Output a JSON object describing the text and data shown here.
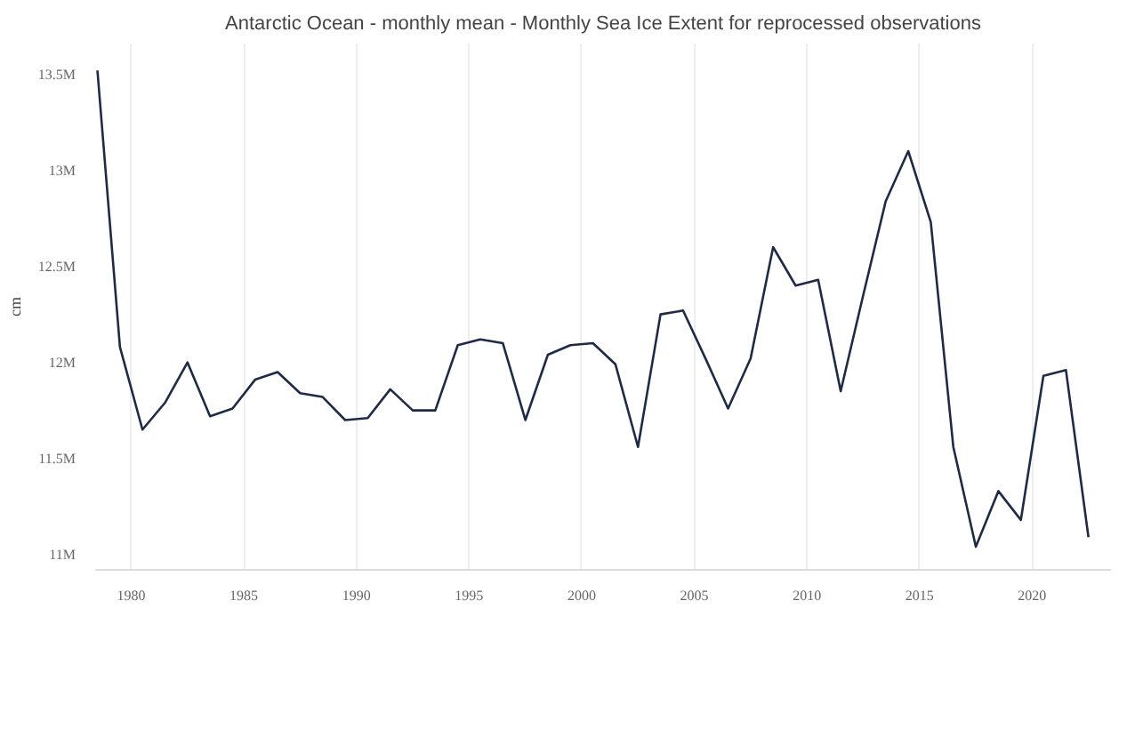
{
  "chart_data": {
    "type": "line",
    "title": "Antarctic Ocean - monthly mean - Monthly Sea Ice Extent for reprocessed observations",
    "ylabel": "cm",
    "x": [
      1978.5,
      1979.5,
      1980.5,
      1981.5,
      1982.5,
      1983.5,
      1984.5,
      1985.5,
      1986.5,
      1987.5,
      1988.5,
      1989.5,
      1990.5,
      1991.5,
      1992.5,
      1993.5,
      1994.5,
      1995.5,
      1996.5,
      1997.5,
      1998.5,
      1999.5,
      2000.5,
      2001.5,
      2002.5,
      2003.5,
      2004.5,
      2005.5,
      2006.5,
      2007.5,
      2008.5,
      2009.5,
      2010.5,
      2011.5,
      2012.5,
      2013.5,
      2014.5,
      2015.5,
      2016.5,
      2017.5,
      2018.5,
      2019.5,
      2020.5,
      2021.5,
      2022.5
    ],
    "series": [
      {
        "color": "#1f2a44",
        "values": [
          13520000,
          12080000,
          11650000,
          11790000,
          12000000,
          11720000,
          11760000,
          11910000,
          11950000,
          11840000,
          11820000,
          11700000,
          11710000,
          11860000,
          11750000,
          11750000,
          12090000,
          12120000,
          12100000,
          11700000,
          12040000,
          12090000,
          12100000,
          11990000,
          11560000,
          12250000,
          12270000,
          12020000,
          11760000,
          12020000,
          12600000,
          12400000,
          12430000,
          11850000,
          12350000,
          12840000,
          13100000,
          12730000,
          11560000,
          11040000,
          11330000,
          11180000,
          11930000,
          11960000,
          11090000
        ]
      }
    ],
    "xlim": [
      1978.4,
      2023.5
    ],
    "xticks": [
      1980,
      1985,
      1990,
      1995,
      2000,
      2005,
      2010,
      2015,
      2020
    ],
    "ylim": [
      10920000,
      13660000
    ],
    "yticks": [
      {
        "value": 11000000,
        "label": "11M"
      },
      {
        "value": 11500000,
        "label": "11.5M"
      },
      {
        "value": 12000000,
        "label": "12M"
      },
      {
        "value": 12500000,
        "label": "12.5M"
      },
      {
        "value": 13000000,
        "label": "13M"
      },
      {
        "value": 13500000,
        "label": "13.5M"
      }
    ],
    "grid": "x",
    "marker": "none",
    "line_style": "solid"
  }
}
